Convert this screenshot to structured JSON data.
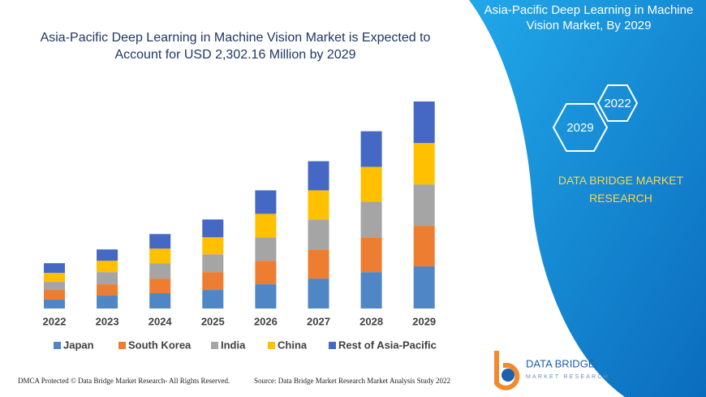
{
  "chart_data": {
    "type": "stacked-bar",
    "title": "Asia-Pacific Deep Learning in Machine Vision Market is Expected to Account for USD 2,302.16 Million by 2029",
    "categories": [
      "2022",
      "2023",
      "2024",
      "2025",
      "2026",
      "2027",
      "2028",
      "2029"
    ],
    "series": [
      {
        "name": "Japan",
        "color": "#4f86c6",
        "values": [
          99,
          144,
          171,
          207,
          270,
          333,
          405,
          469
        ]
      },
      {
        "name": "South Korea",
        "color": "#ed7d31",
        "values": [
          108,
          126,
          162,
          198,
          261,
          324,
          387,
          451
        ]
      },
      {
        "name": "India",
        "color": "#a5a5a5",
        "values": [
          90,
          135,
          171,
          198,
          261,
          333,
          396,
          460
        ]
      },
      {
        "name": "China",
        "color": "#ffc000",
        "values": [
          99,
          126,
          162,
          189,
          261,
          324,
          387,
          460
        ]
      },
      {
        "name": "Rest of Asia-Pacific",
        "color": "#4468c4",
        "values": [
          108,
          126,
          162,
          198,
          261,
          324,
          396,
          462
        ]
      }
    ]
  },
  "panel": {
    "title": "Asia-Pacific Deep Learning in Machine Vision Market, By 2029",
    "badges": [
      "2022",
      "2029"
    ],
    "brand": "DATA BRIDGE MARKET RESEARCH"
  },
  "logo": {
    "name": "DATA BRIDGE",
    "tagline": "MARKET RESEARCH"
  },
  "footer": {
    "left": "DMCA Protected © Data Bridge Market Research- All Rights Reserved.",
    "right": "Source: Data Bridge Market Research Market Analysis Study 2022"
  }
}
